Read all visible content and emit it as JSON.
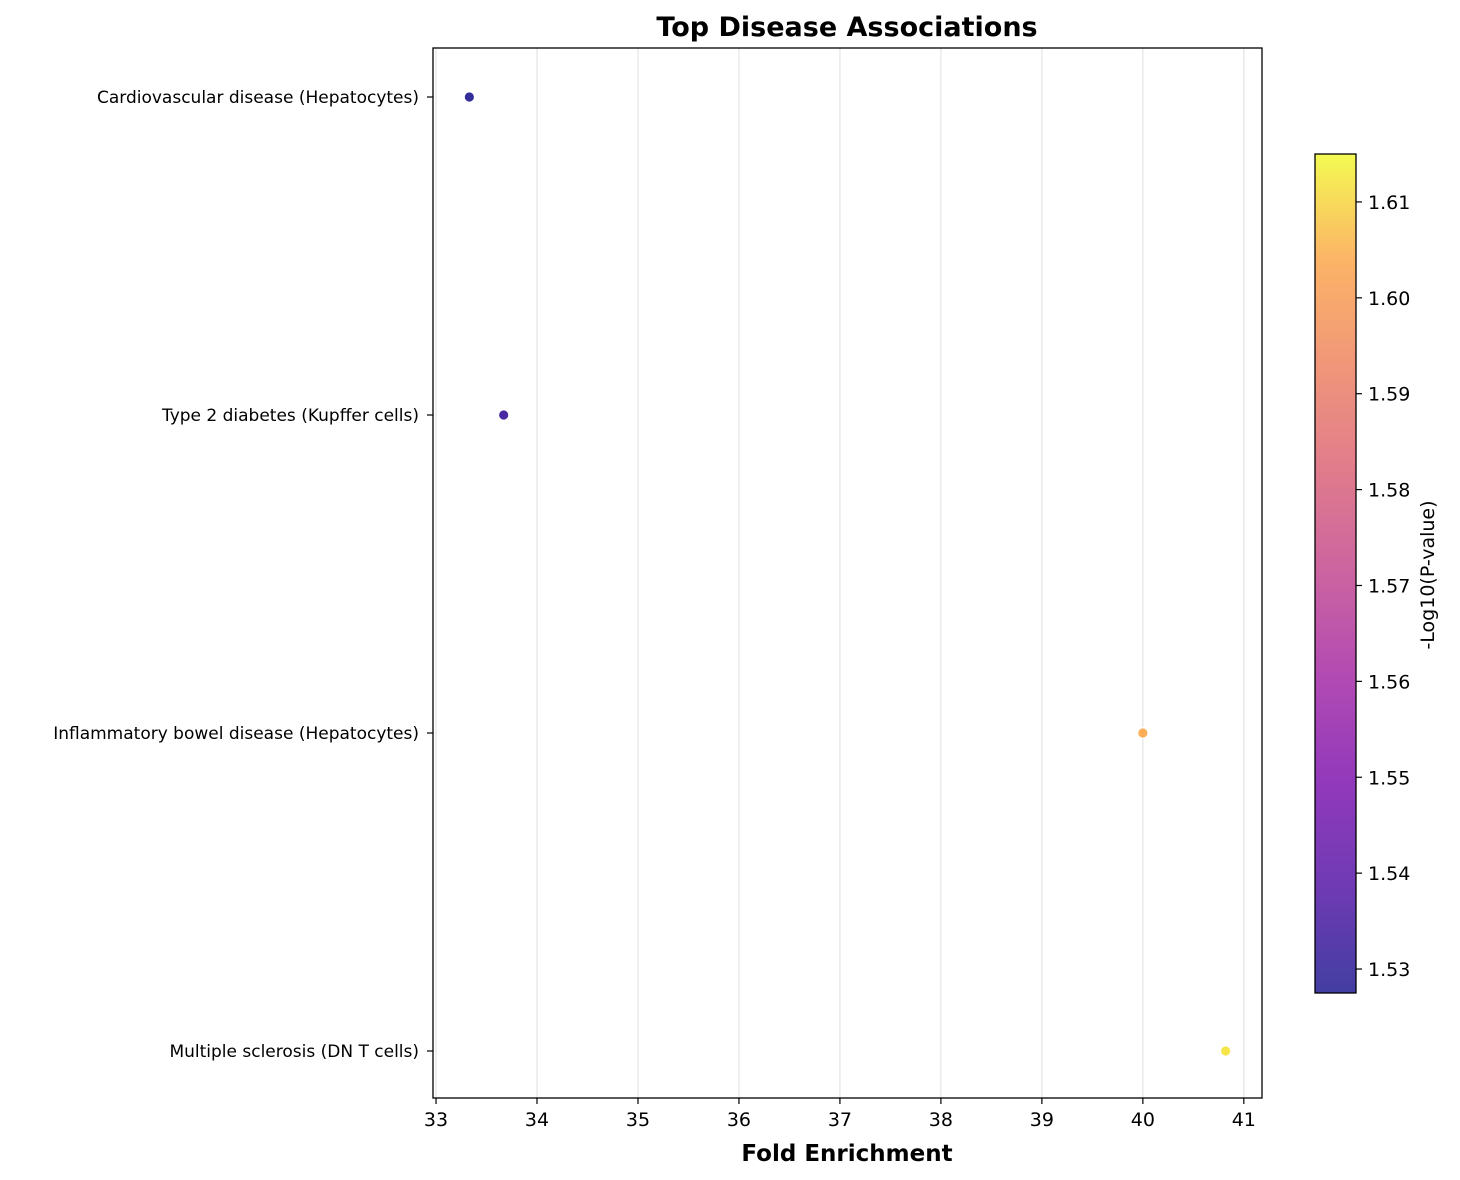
{
  "chart_data": {
    "type": "scatter",
    "title": "Top Disease Associations",
    "xlabel": "Fold Enrichment",
    "ylabel": "",
    "xlim": [
      32.97,
      41.18
    ],
    "x_ticks": [
      "33",
      "34",
      "35",
      "36",
      "37",
      "38",
      "39",
      "40",
      "41"
    ],
    "grid": "vertical",
    "categories": [
      "Cardiovascular disease (Hepatocytes)",
      "Type 2 diabetes (Kupffer cells)",
      "Inflammatory bowel disease (Hepatocytes)",
      "Multiple sclerosis (DN T cells)"
    ],
    "points": [
      {
        "category": "Cardiovascular disease (Hepatocytes)",
        "x": 33.33,
        "color_value": 1.528
      },
      {
        "category": "Type 2 diabetes (Kupffer cells)",
        "x": 33.67,
        "color_value": 1.533
      },
      {
        "category": "Inflammatory bowel disease (Hepatocytes)",
        "x": 40.0,
        "color_value": 1.604
      },
      {
        "category": "Multiple sclerosis (DN T cells)",
        "x": 40.82,
        "color_value": 1.612
      }
    ],
    "colorbar": {
      "label": "-Log10(P-value)",
      "colormap": "plasma",
      "range": [
        1.5275,
        1.615
      ],
      "ticks": [
        "1.53",
        "1.54",
        "1.55",
        "1.56",
        "1.57",
        "1.58",
        "1.59",
        "1.60",
        "1.61"
      ]
    }
  }
}
